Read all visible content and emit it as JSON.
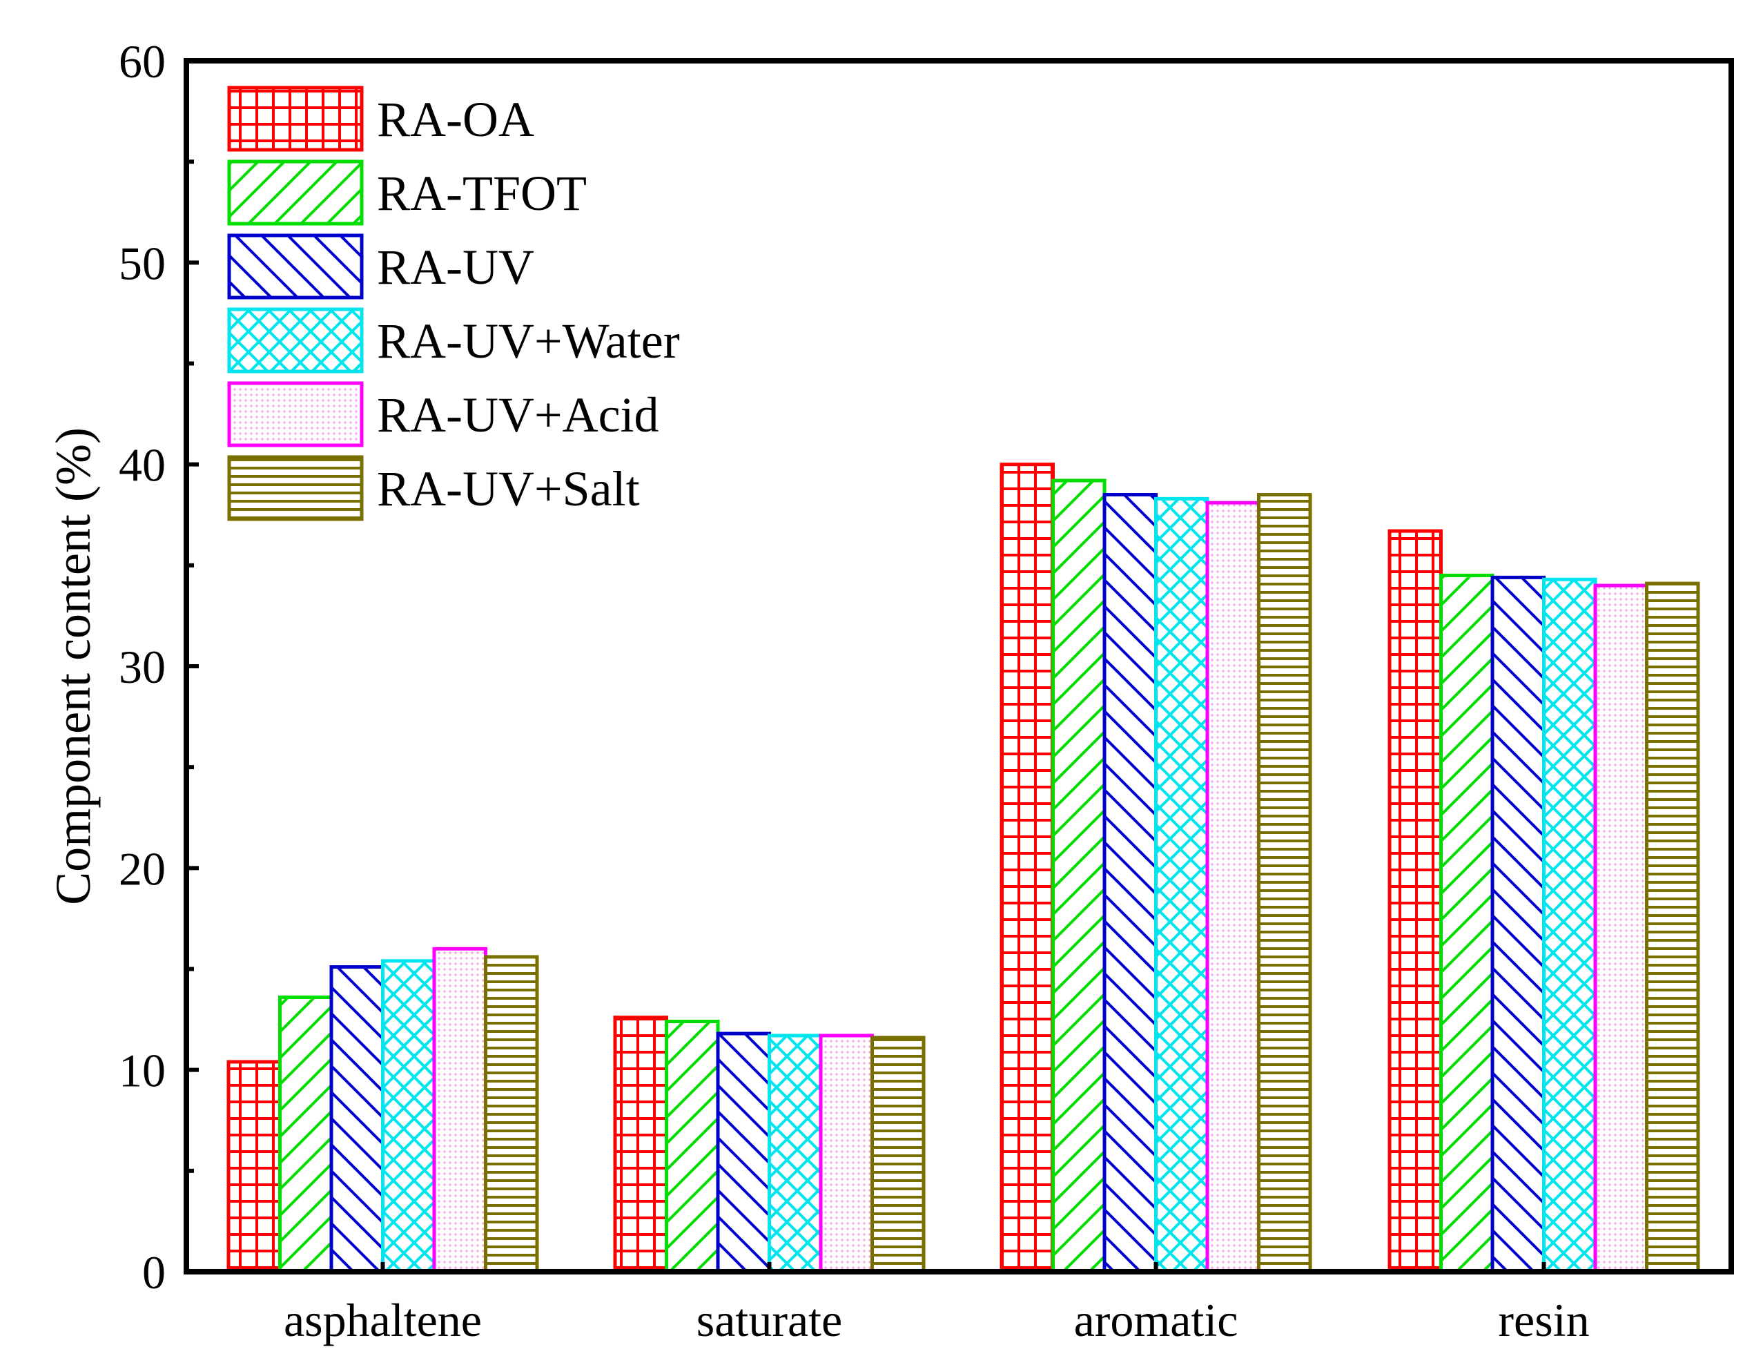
{
  "chart_data": {
    "type": "bar",
    "title": "",
    "xlabel": "",
    "ylabel": "Component content (%)",
    "ylim": [
      0,
      60
    ],
    "yticks": [
      0,
      10,
      20,
      30,
      40,
      50,
      60
    ],
    "grid": false,
    "legend_position": "top-left",
    "categories": [
      "asphaltene",
      "saturate",
      "aromatic",
      "resin"
    ],
    "series": [
      {
        "name": "RA-OA",
        "color": "#ff0000",
        "pattern": "grid",
        "values": [
          10.4,
          12.6,
          40.0,
          36.7
        ]
      },
      {
        "name": "RA-TFOT",
        "color": "#00dd00",
        "pattern": "diag-up",
        "values": [
          13.6,
          12.4,
          39.2,
          34.5
        ]
      },
      {
        "name": "RA-UV",
        "color": "#0000cc",
        "pattern": "diag-down",
        "values": [
          15.1,
          11.8,
          38.5,
          34.4
        ]
      },
      {
        "name": "RA-UV+Water",
        "color": "#00e5ee",
        "pattern": "crosshatch",
        "values": [
          15.4,
          11.7,
          38.3,
          34.3
        ]
      },
      {
        "name": "RA-UV+Acid",
        "color": "#ff00ff",
        "pattern": "dots",
        "values": [
          16.0,
          11.7,
          38.1,
          34.0
        ]
      },
      {
        "name": "RA-UV+Salt",
        "color": "#7a7000",
        "pattern": "horizontal",
        "values": [
          15.6,
          11.6,
          38.5,
          34.1
        ]
      }
    ]
  }
}
